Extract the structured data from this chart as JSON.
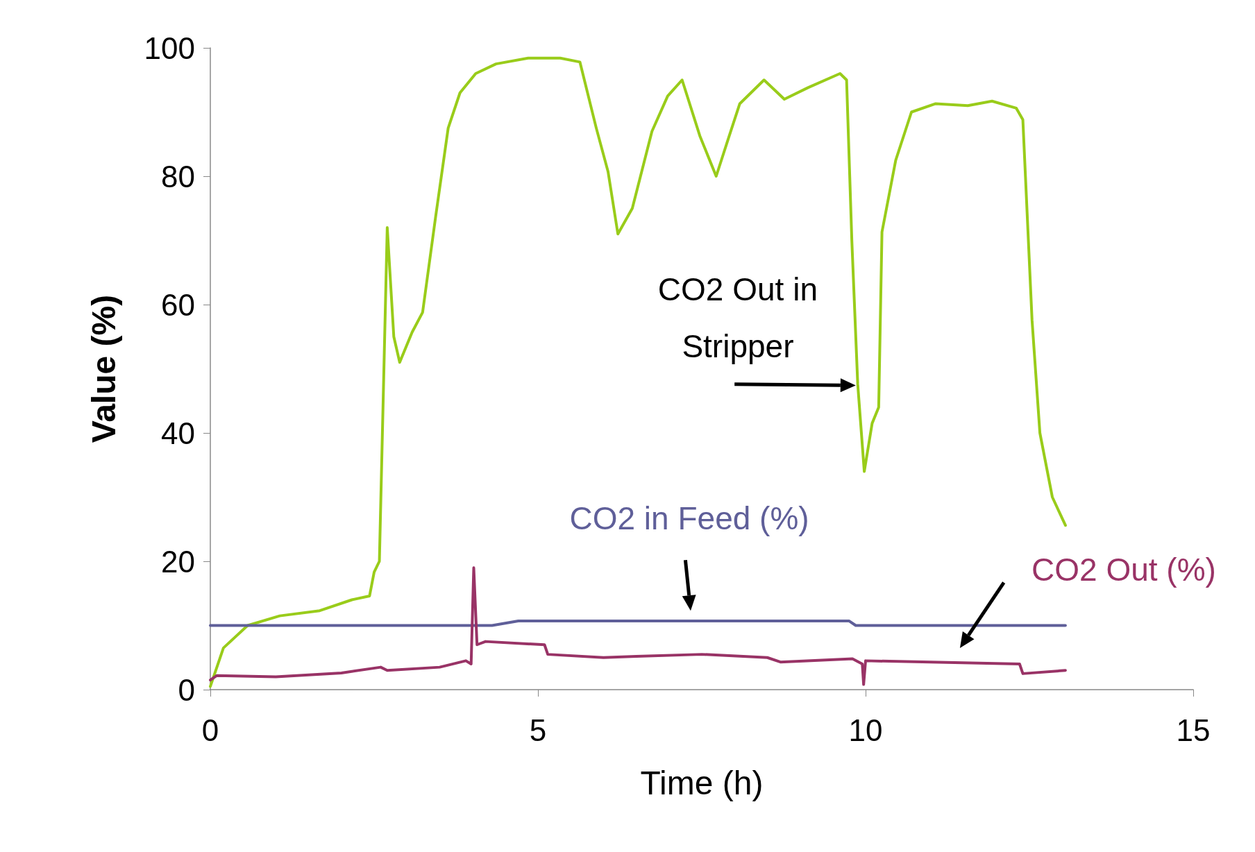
{
  "chart_data": {
    "type": "line",
    "xlabel": "Time (h)",
    "ylabel": "Value (%)",
    "xlim": [
      0,
      15
    ],
    "xticks": [
      0,
      5,
      10,
      15
    ],
    "ylim": [
      0,
      100
    ],
    "yticks": [
      0,
      20,
      40,
      60,
      80,
      100
    ],
    "grid": false,
    "legend": false,
    "marker": "none",
    "line_style": "solid",
    "series": [
      {
        "name": "CO2 Out in Stripper",
        "color": "#99cc1a",
        "x": [
          0,
          0.2,
          0.57,
          1.06,
          1.67,
          2.16,
          2.43,
          2.5,
          2.58,
          2.7,
          2.8,
          2.89,
          3.08,
          3.24,
          3.44,
          3.63,
          3.81,
          4.05,
          4.36,
          4.85,
          5.34,
          5.64,
          5.89,
          6.07,
          6.22,
          6.44,
          6.74,
          6.98,
          7.2,
          7.47,
          7.72,
          7.9,
          8.08,
          8.45,
          8.76,
          9.12,
          9.61,
          9.71,
          9.79,
          9.88,
          9.98,
          10.1,
          10.2,
          10.25,
          10.46,
          10.7,
          11.07,
          11.56,
          11.93,
          12.3,
          12.4,
          12.54,
          12.66,
          12.85,
          13.05
        ],
        "values": [
          0.5,
          6.5,
          10,
          11.5,
          12.3,
          14,
          14.6,
          18.3,
          20,
          72,
          55,
          51,
          55.7,
          58.8,
          73.8,
          87.5,
          93,
          96,
          97.5,
          98.4,
          98.4,
          97.8,
          87.5,
          80.7,
          71,
          75,
          87,
          92.5,
          95,
          86.3,
          80,
          85.7,
          91.3,
          95,
          92,
          93.8,
          96,
          95,
          70,
          47.6,
          34,
          41.5,
          44,
          71.3,
          82.5,
          90,
          91.3,
          91,
          91.7,
          90.6,
          88.8,
          57.6,
          40,
          30,
          25.6
        ]
      },
      {
        "name": "CO2 in Feed (%)",
        "color": "#5f5f99",
        "x": [
          0,
          4.3,
          4.7,
          9.75,
          9.85,
          13.05
        ],
        "values": [
          10,
          10,
          10.7,
          10.7,
          10,
          10
        ]
      },
      {
        "name": "CO2 Out (%)",
        "color": "#993366",
        "x": [
          0,
          0.1,
          1,
          2,
          2.6,
          2.7,
          3.5,
          3.9,
          3.98,
          4.02,
          4.07,
          4.2,
          5.1,
          5.15,
          6,
          6.5,
          7.5,
          8.5,
          8.7,
          9.8,
          9.95,
          9.97,
          10,
          12.35,
          12.4,
          13.05
        ],
        "values": [
          1.5,
          2.2,
          2,
          2.6,
          3.5,
          3,
          3.5,
          4.5,
          4,
          19,
          7,
          7.5,
          7,
          5.5,
          5,
          5.2,
          5.5,
          5,
          4.3,
          4.8,
          4,
          0.8,
          4.5,
          4,
          2.5,
          3
        ]
      }
    ]
  }
}
